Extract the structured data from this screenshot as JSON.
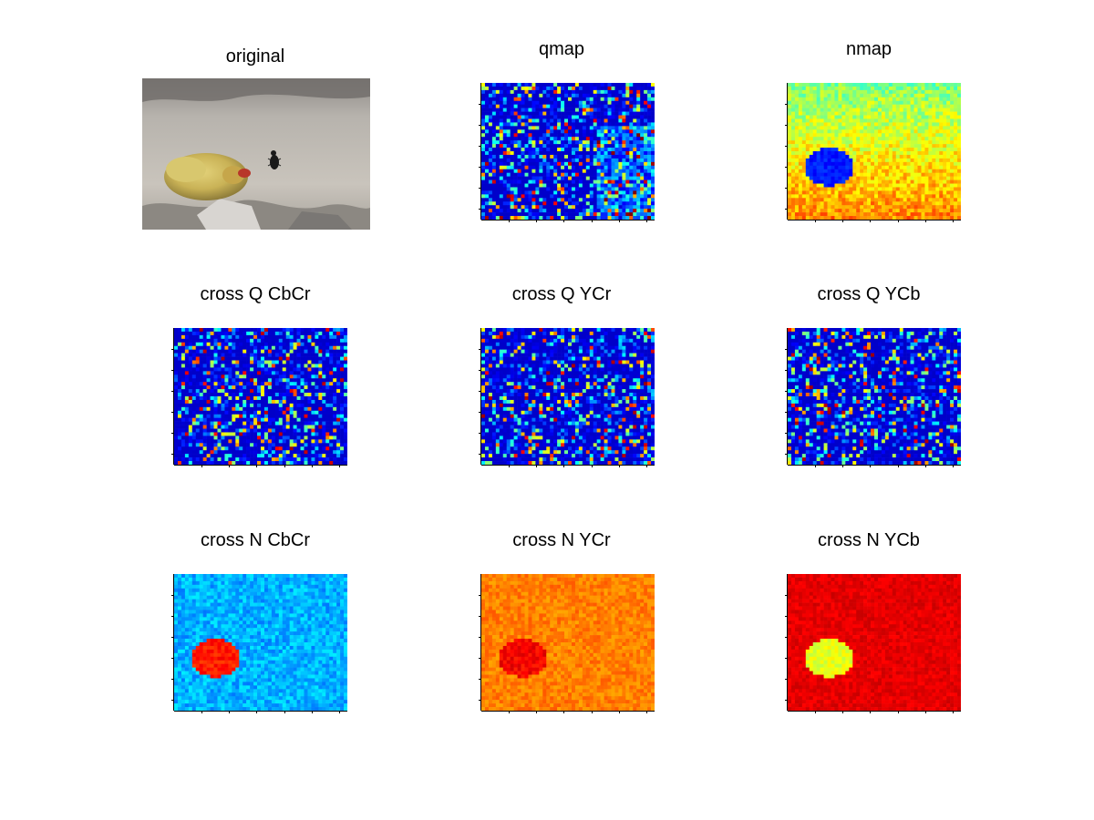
{
  "figure": {
    "panels": [
      {
        "id": "original",
        "title": "original",
        "kind": "photo"
      },
      {
        "id": "qmap",
        "title": "qmap",
        "kind": "heatmap",
        "colormap": "jet",
        "base_level": 0.12,
        "noise": 0.35,
        "bright_right_band": true
      },
      {
        "id": "nmap",
        "title": "nmap",
        "kind": "heatmap",
        "colormap": "jet",
        "base_level": 0.5,
        "noise": 0.08,
        "blob_level": 0.15
      },
      {
        "id": "cross-q-cbcr",
        "title": "cross Q CbCr",
        "kind": "heatmap",
        "colormap": "jet",
        "base_level": 0.12,
        "noise": 0.3
      },
      {
        "id": "cross-q-ycr",
        "title": "cross Q YCr",
        "kind": "heatmap",
        "colormap": "jet",
        "base_level": 0.12,
        "noise": 0.3
      },
      {
        "id": "cross-q-ycb",
        "title": "cross Q YCb",
        "kind": "heatmap",
        "colormap": "jet",
        "base_level": 0.12,
        "noise": 0.3
      },
      {
        "id": "cross-n-cbcr",
        "title": "cross N CbCr",
        "kind": "heatmap",
        "colormap": "jet",
        "base_level": 0.3,
        "noise": 0.06,
        "blob_level": 0.85
      },
      {
        "id": "cross-n-ycr",
        "title": "cross N YCr",
        "kind": "heatmap",
        "colormap": "jet",
        "base_level": 0.75,
        "noise": 0.04,
        "blob_level": 0.88
      },
      {
        "id": "cross-n-ycb",
        "title": "cross N YCb",
        "kind": "heatmap",
        "colormap": "jet",
        "base_level": 0.9,
        "noise": 0.03,
        "blob_level": 0.6
      }
    ]
  }
}
